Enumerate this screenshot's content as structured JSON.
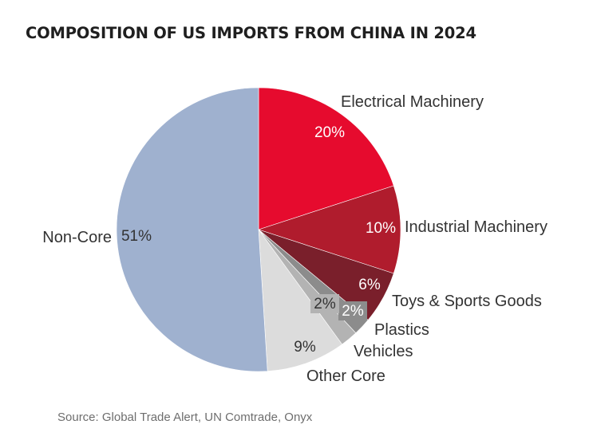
{
  "chart_data": {
    "type": "pie",
    "title": "COMPOSITION OF US IMPORTS FROM CHINA IN 2024",
    "slices": [
      {
        "label": "Electrical Machinery",
        "value": 20,
        "value_label": "20%",
        "color": "#e60b2e"
      },
      {
        "label": "Industrial Machinery",
        "value": 10,
        "value_label": "10%",
        "color": "#b01c2d"
      },
      {
        "label": "Toys & Sports Goods",
        "value": 6,
        "value_label": "6%",
        "color": "#7a1f2b"
      },
      {
        "label": "Plastics",
        "value": 2,
        "value_label": "2%",
        "color": "#8c8c8c"
      },
      {
        "label": "Vehicles",
        "value": 2,
        "value_label": "2%",
        "color": "#b3b3b3"
      },
      {
        "label": "Other Core",
        "value": 9,
        "value_label": "9%",
        "color": "#dcdcdc"
      },
      {
        "label": "Non-Core",
        "value": 51,
        "value_label": "51%",
        "color": "#9fb1cf"
      }
    ]
  },
  "source": "Source: Global Trade Alert, UN Comtrade, Onyx"
}
